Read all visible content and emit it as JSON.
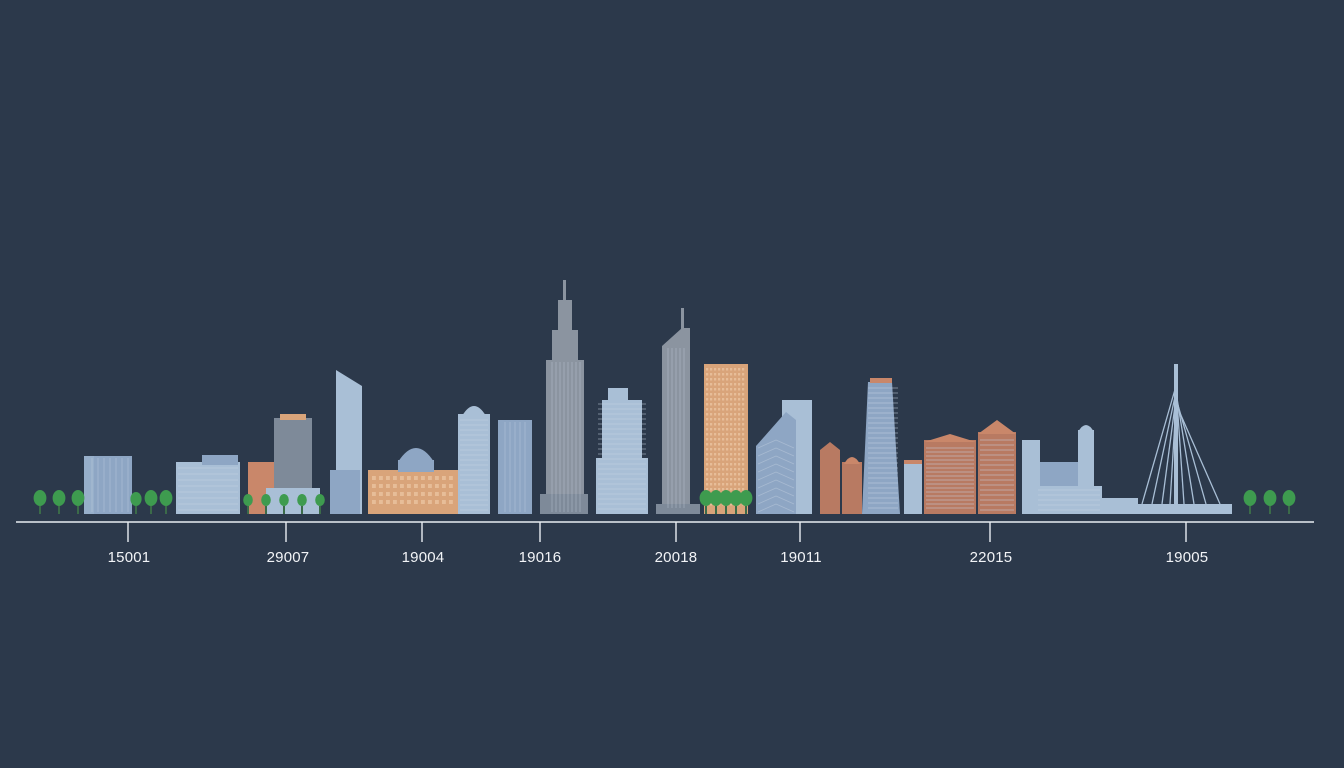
{
  "colors": {
    "background": "#2c394b",
    "axis": "#e8edf2",
    "label": "#f2f4f7",
    "steel_blue": "#8ea6c4",
    "light_blue": "#a9bfd6",
    "slate": "#7e8a99",
    "grey": "#8b94a0",
    "terracotta": "#c9876a",
    "sand": "#d9a47a",
    "brick": "#b87a62",
    "tree_green": "#3e9b4f",
    "window": "#c7d3e2"
  },
  "timeline": {
    "labels": [
      "15001",
      "29007",
      "19004",
      "19016",
      "20018",
      "19011",
      "22015",
      "19005"
    ]
  }
}
